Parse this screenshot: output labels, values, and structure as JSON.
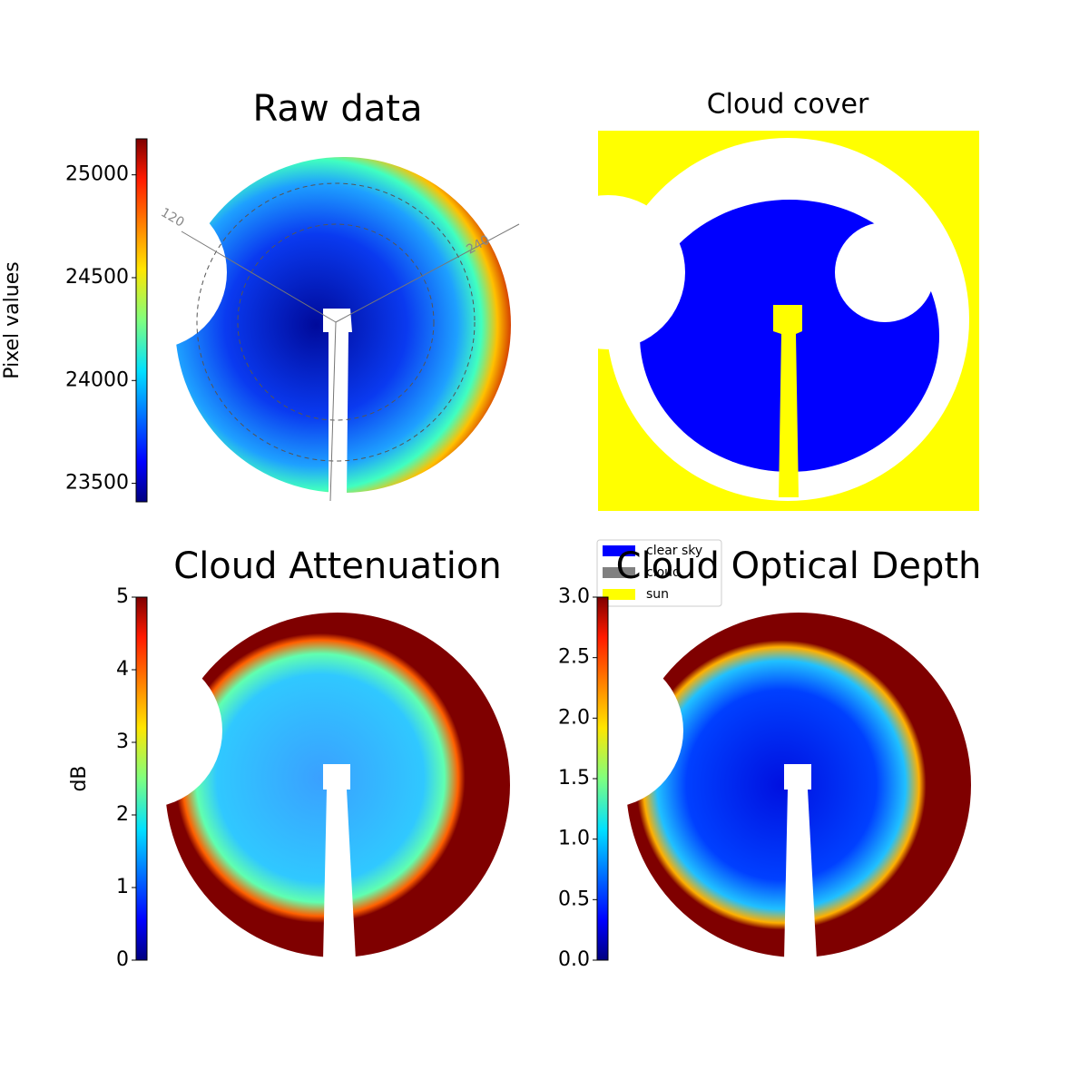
{
  "chart_data": [
    {
      "type": "sky-image",
      "title": "Raw data",
      "colorbar_label": "Pixel values",
      "clim": [
        23410,
        25175
      ],
      "cticks": [
        23500,
        24000,
        24500,
        25000
      ],
      "annotations": [
        "120",
        "240"
      ]
    },
    {
      "type": "cloud-mask",
      "title": "Cloud cover",
      "series": [
        {
          "name": "clear sky",
          "color": "#0000ff"
        },
        {
          "name": "cloud",
          "color": "#808080"
        },
        {
          "name": "sun",
          "color": "#ffff00"
        }
      ]
    },
    {
      "type": "sky-image",
      "title": "Cloud Attenuation",
      "colorbar_label": "dB",
      "clim": [
        0,
        5
      ],
      "cticks": [
        0,
        1,
        2,
        3,
        4,
        5
      ]
    },
    {
      "type": "sky-image",
      "title": "Cloud Optical Depth",
      "clim": [
        0,
        3
      ],
      "cticks": [
        {
          "value": 0,
          "label": "0.0"
        },
        {
          "value": 0.5,
          "label": "0.5"
        },
        {
          "value": 1,
          "label": "1.0"
        },
        {
          "value": 1.5,
          "label": "1.5"
        },
        {
          "value": 2,
          "label": "2.0"
        },
        {
          "value": 2.5,
          "label": "2.5"
        },
        {
          "value": 3,
          "label": "3.0"
        }
      ]
    }
  ]
}
